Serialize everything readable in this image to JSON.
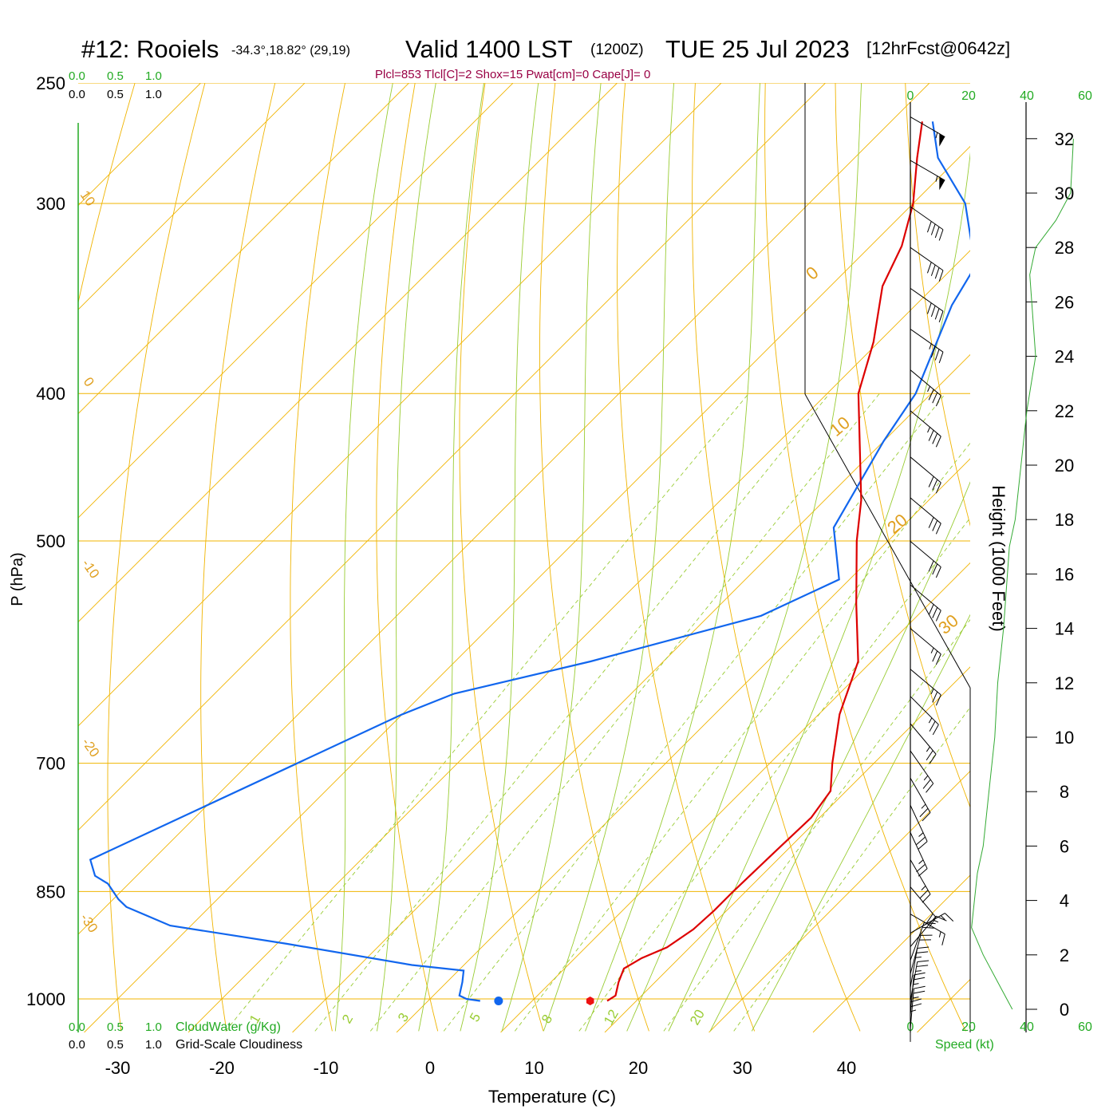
{
  "header": {
    "station": "#12: Rooiels",
    "coords": "-34.3°,18.82° (29,19)",
    "valid": "Valid 1400 LST",
    "zulu": "(1200Z)",
    "date": "TUE 25 Jul 2023",
    "forecast": "[12hrFcst@0642z]",
    "indices": "Plcl=853 Tlcl[C]=2 Shox=15 Pwat[cm]=0 Cape[J]= 0"
  },
  "colors": {
    "temperature": "#dd0000",
    "dewpoint": "#1166ee",
    "cloud_water": "#22aa22",
    "isobar": "#f0b400",
    "dry_adiabat": "#f0b400",
    "moist_adiabat": "#99cc33",
    "mixing_ratio": "#99cc33",
    "label_maroon": "#990044"
  },
  "legend": {
    "scale_ticks": [
      "0.0",
      "0.5",
      "1.0"
    ],
    "cloud_water_label": "CloudWater (g/Kg)",
    "cloudiness_label": "Grid-Scale Cloudiness",
    "speed_label": "Speed (kt)"
  },
  "chart_data": {
    "type": "line",
    "title": "#12: Rooiels Valid 1400 LST (1200Z) TUE 25 Jul 2023",
    "xlabel": "Temperature (C)",
    "ylabel": "P (hPa)",
    "y2label": "Height (1000 Feet)",
    "x_ticks": [
      -30,
      -20,
      -10,
      0,
      10,
      20,
      30,
      40
    ],
    "pressure_levels": [
      1000,
      850,
      700,
      500,
      400,
      300,
      250
    ],
    "pressure_labels": [
      "1000",
      "850",
      "700",
      "500",
      "400",
      "300",
      "250"
    ],
    "height_ticks": [
      "0",
      "2",
      "4",
      "6",
      "8",
      "10",
      "12",
      "14",
      "16",
      "18",
      "20",
      "22",
      "24",
      "26",
      "28",
      "30",
      "32"
    ],
    "speed_ticks": [
      "0",
      "20",
      "40",
      "60"
    ],
    "temperature_series": [
      {
        "p": 1003,
        "t": 17.2
      },
      {
        "p": 995,
        "t": 17.5
      },
      {
        "p": 975,
        "t": 16.5
      },
      {
        "p": 955,
        "t": 15.7
      },
      {
        "p": 940,
        "t": 16.4
      },
      {
        "p": 925,
        "t": 17.8
      },
      {
        "p": 900,
        "t": 18.6
      },
      {
        "p": 875,
        "t": 18.8
      },
      {
        "p": 850,
        "t": 18.8
      },
      {
        "p": 800,
        "t": 19.0
      },
      {
        "p": 760,
        "t": 19.2
      },
      {
        "p": 730,
        "t": 18.5
      },
      {
        "p": 700,
        "t": 16.0
      },
      {
        "p": 650,
        "t": 12.0
      },
      {
        "p": 600,
        "t": 8.7
      },
      {
        "p": 550,
        "t": 3.0
      },
      {
        "p": 500,
        "t": -3.0
      },
      {
        "p": 470,
        "t": -6.5
      },
      {
        "p": 400,
        "t": -17.0
      },
      {
        "p": 370,
        "t": -20.5
      },
      {
        "p": 340,
        "t": -25.0
      },
      {
        "p": 320,
        "t": -27.0
      },
      {
        "p": 300,
        "t": -30.0
      },
      {
        "p": 280,
        "t": -34.0
      },
      {
        "p": 265,
        "t": -37.0
      }
    ],
    "dewpoint_series": [
      {
        "p": 1003,
        "t": 5.0
      },
      {
        "p": 1000,
        "t": 3.5
      },
      {
        "p": 995,
        "t": 2.5
      },
      {
        "p": 975,
        "t": 1.5
      },
      {
        "p": 958,
        "t": 0.5
      },
      {
        "p": 950,
        "t": -5.0
      },
      {
        "p": 920,
        "t": -19.0
      },
      {
        "p": 895,
        "t": -32.0
      },
      {
        "p": 870,
        "t": -38.0
      },
      {
        "p": 860,
        "t": -39.5
      },
      {
        "p": 840,
        "t": -42.0
      },
      {
        "p": 830,
        "t": -44.0
      },
      {
        "p": 810,
        "t": -46.0
      },
      {
        "p": 650,
        "t": -30.0
      },
      {
        "p": 630,
        "t": -27.0
      },
      {
        "p": 600,
        "t": -17.0
      },
      {
        "p": 560,
        "t": -5.0
      },
      {
        "p": 530,
        "t": -1.0
      },
      {
        "p": 490,
        "t": -6.5
      },
      {
        "p": 430,
        "t": -10.0
      },
      {
        "p": 400,
        "t": -11.5
      },
      {
        "p": 350,
        "t": -16.5
      },
      {
        "p": 330,
        "t": -18.0
      },
      {
        "p": 300,
        "t": -25.0
      },
      {
        "p": 280,
        "t": -32.0
      },
      {
        "p": 265,
        "t": -36.0
      }
    ],
    "surface_temperature": 15.8,
    "surface_dewpoint": 7.0,
    "dry_adiabat_labels": [
      "10",
      "0",
      "-10",
      "-20",
      "-30",
      "0",
      "10",
      "20",
      "30"
    ],
    "mixing_ratio_labels": [
      "1",
      "2",
      "3",
      "5",
      "8",
      "12",
      "20"
    ],
    "wind_speed_profile_kt": [
      {
        "h": 32,
        "s": 56
      },
      {
        "h": 30,
        "s": 55
      },
      {
        "h": 29,
        "s": 50
      },
      {
        "h": 28,
        "s": 43
      },
      {
        "h": 27,
        "s": 41
      },
      {
        "h": 24,
        "s": 43
      },
      {
        "h": 22,
        "s": 40
      },
      {
        "h": 20,
        "s": 38
      },
      {
        "h": 18,
        "s": 36
      },
      {
        "h": 17,
        "s": 34
      },
      {
        "h": 14,
        "s": 32
      },
      {
        "h": 12,
        "s": 30
      },
      {
        "h": 10,
        "s": 29
      },
      {
        "h": 8,
        "s": 27
      },
      {
        "h": 6,
        "s": 25
      },
      {
        "h": 5,
        "s": 23
      },
      {
        "h": 4,
        "s": 22
      },
      {
        "h": 3,
        "s": 21
      },
      {
        "h": 2,
        "s": 25
      },
      {
        "h": 1,
        "s": 30
      },
      {
        "h": 0,
        "s": 35
      }
    ],
    "wind_barbs": [
      {
        "h": 32.8,
        "dir": 300,
        "s": 55
      },
      {
        "h": 31.2,
        "dir": 300,
        "s": 55
      },
      {
        "h": 29.5,
        "dir": 305,
        "s": 40
      },
      {
        "h": 28,
        "dir": 305,
        "s": 40
      },
      {
        "h": 26.5,
        "dir": 305,
        "s": 40
      },
      {
        "h": 25,
        "dir": 305,
        "s": 35
      },
      {
        "h": 23.5,
        "dir": 310,
        "s": 35
      },
      {
        "h": 22,
        "dir": 310,
        "s": 35
      },
      {
        "h": 20.3,
        "dir": 310,
        "s": 30
      },
      {
        "h": 18.8,
        "dir": 310,
        "s": 30
      },
      {
        "h": 17.2,
        "dir": 310,
        "s": 30
      },
      {
        "h": 15.6,
        "dir": 310,
        "s": 30
      },
      {
        "h": 14,
        "dir": 310,
        "s": 25
      },
      {
        "h": 12.5,
        "dir": 310,
        "s": 25
      },
      {
        "h": 11.5,
        "dir": 315,
        "s": 25
      },
      {
        "h": 10.5,
        "dir": 320,
        "s": 25
      },
      {
        "h": 9.5,
        "dir": 325,
        "s": 25
      },
      {
        "h": 8.5,
        "dir": 330,
        "s": 25
      },
      {
        "h": 7.5,
        "dir": 335,
        "s": 25
      },
      {
        "h": 6.5,
        "dir": 335,
        "s": 25
      },
      {
        "h": 5.5,
        "dir": 330,
        "s": 25
      },
      {
        "h": 4.5,
        "dir": 320,
        "s": 20
      },
      {
        "h": 3.5,
        "dir": 300,
        "s": 15
      },
      {
        "h": 2.8,
        "dir": 240,
        "s": 15
      },
      {
        "h": 2.3,
        "dir": 220,
        "s": 15
      },
      {
        "h": 1.8,
        "dir": 200,
        "s": 20
      },
      {
        "h": 1.3,
        "dir": 195,
        "s": 20
      },
      {
        "h": 0.8,
        "dir": 190,
        "s": 25
      },
      {
        "h": 0.3,
        "dir": 190,
        "s": 25
      },
      {
        "h": -0.2,
        "dir": 185,
        "s": 25
      },
      {
        "h": -0.7,
        "dir": 185,
        "s": 25
      },
      {
        "h": -1.2,
        "dir": 180,
        "s": 25
      }
    ]
  }
}
